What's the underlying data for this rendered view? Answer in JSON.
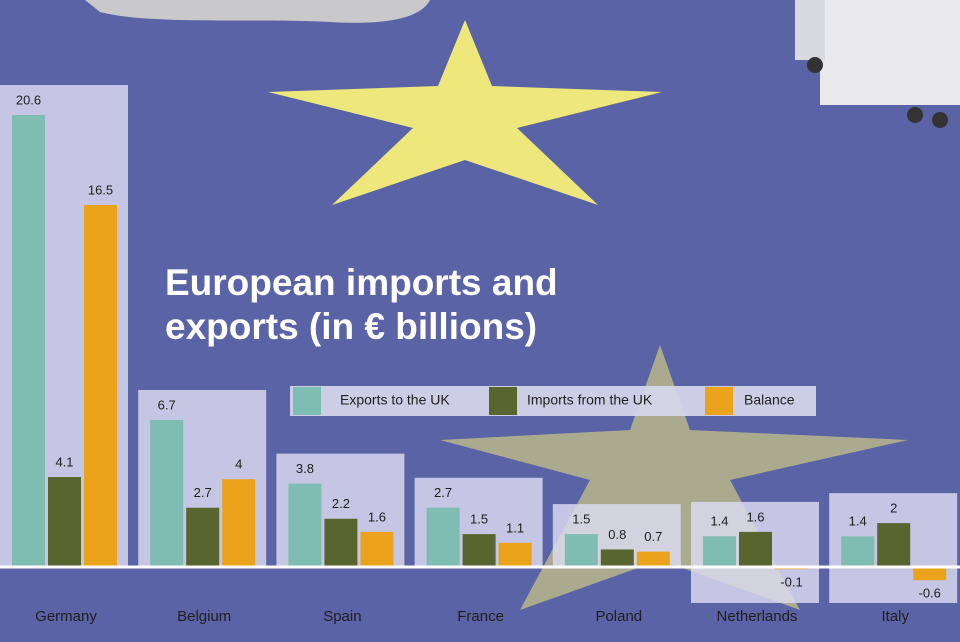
{
  "chart_data": {
    "type": "bar",
    "title": "European imports and exports (in € billions)",
    "categories": [
      "Germany",
      "Belgium",
      "Spain",
      "France",
      "Poland",
      "Netherlands",
      "Italy"
    ],
    "series": [
      {
        "name": "Exports to the UK",
        "color": "#7fbdb3",
        "values": [
          20.6,
          6.7,
          3.8,
          2.7,
          1.5,
          1.4,
          1.4
        ]
      },
      {
        "name": "Imports from the UK",
        "color": "#59652f",
        "values": [
          4.1,
          2.7,
          2.2,
          1.5,
          0.8,
          1.6,
          2
        ]
      },
      {
        "name": "Balance",
        "color": "#eba31c",
        "values": [
          16.5,
          4,
          1.6,
          1.1,
          0.7,
          -0.1,
          -0.6
        ]
      }
    ],
    "legend": "top-right"
  }
}
